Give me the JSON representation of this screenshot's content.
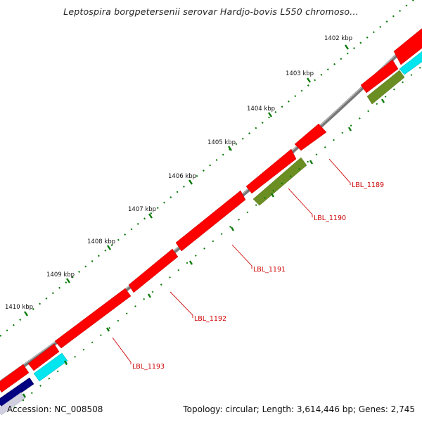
{
  "title": "Leptospira borgpetersenii serovar Hardjo-bovis L550 chromoso...",
  "footer": {
    "accession": "Accession: NC_008508",
    "summary": "Topology: circular; Length: 3,614,446 bp; Genes: 2,745"
  },
  "ruler_labels": [
    "1402 kbp",
    "1403 kbp",
    "1404 kbp",
    "1405 kbp",
    "1406 kbp",
    "1407 kbp",
    "1408 kbp",
    "1409 kbp",
    "1410 kbp"
  ],
  "gene_labels": [
    "LBL_1189",
    "LBL_1190",
    "LBL_1191",
    "LBL_1192",
    "LBL_1193"
  ],
  "colors": {
    "backbone": "#777777",
    "forward_cds": "#ff0000",
    "reverse_cds": "#6b8e23",
    "cyan_feature": "#00e5ee",
    "navy_feature": "#000080",
    "tick_green": "#0a7a0a",
    "label_red": "#cc0000"
  }
}
